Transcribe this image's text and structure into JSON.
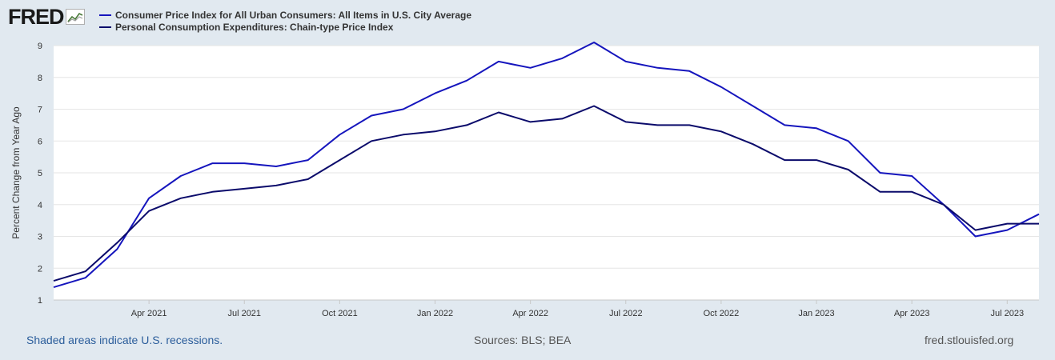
{
  "logo": {
    "text": "FRED"
  },
  "legend": [
    {
      "label": "Consumer Price Index for All Urban Consumers: All Items in U.S. City Average",
      "color": "#1515bd"
    },
    {
      "label": "Personal Consumption Expenditures: Chain-type Price Index",
      "color": "#0b0b6b"
    }
  ],
  "footer": {
    "recession_note": "Shaded areas indicate U.S. recessions.",
    "sources": "Sources: BLS; BEA",
    "site": "fred.stlouisfed.org"
  },
  "chart_data": {
    "type": "line",
    "title": "",
    "xlabel": "",
    "ylabel": "Percent Change from Year Ago",
    "ylim": [
      1,
      9
    ],
    "yticks": [
      1,
      2,
      3,
      4,
      5,
      6,
      7,
      8,
      9
    ],
    "x": [
      "2021-01",
      "2021-02",
      "2021-03",
      "2021-04",
      "2021-05",
      "2021-06",
      "2021-07",
      "2021-08",
      "2021-09",
      "2021-10",
      "2021-11",
      "2021-12",
      "2022-01",
      "2022-02",
      "2022-03",
      "2022-04",
      "2022-05",
      "2022-06",
      "2022-07",
      "2022-08",
      "2022-09",
      "2022-10",
      "2022-11",
      "2022-12",
      "2023-01",
      "2023-02",
      "2023-03",
      "2023-04",
      "2023-05",
      "2023-06",
      "2023-07",
      "2023-08"
    ],
    "xticks": [
      {
        "index": 3,
        "label": "Apr 2021"
      },
      {
        "index": 6,
        "label": "Jul 2021"
      },
      {
        "index": 9,
        "label": "Oct 2021"
      },
      {
        "index": 12,
        "label": "Jan 2022"
      },
      {
        "index": 15,
        "label": "Apr 2022"
      },
      {
        "index": 18,
        "label": "Jul 2022"
      },
      {
        "index": 21,
        "label": "Oct 2022"
      },
      {
        "index": 24,
        "label": "Jan 2023"
      },
      {
        "index": 27,
        "label": "Apr 2023"
      },
      {
        "index": 30,
        "label": "Jul 2023"
      }
    ],
    "series": [
      {
        "name": "Consumer Price Index for All Urban Consumers: All Items in U.S. City Average",
        "values": [
          1.4,
          1.7,
          2.6,
          4.2,
          4.9,
          5.3,
          5.3,
          5.2,
          5.4,
          6.2,
          6.8,
          7.0,
          7.5,
          7.9,
          8.5,
          8.3,
          8.6,
          9.1,
          8.5,
          8.3,
          8.2,
          7.7,
          7.1,
          6.5,
          6.4,
          6.0,
          5.0,
          4.9,
          4.0,
          3.0,
          3.2,
          3.7
        ]
      },
      {
        "name": "Personal Consumption Expenditures: Chain-type Price Index",
        "values": [
          1.6,
          1.9,
          2.8,
          3.8,
          4.2,
          4.4,
          4.5,
          4.6,
          4.8,
          5.4,
          6.0,
          6.2,
          6.3,
          6.5,
          6.9,
          6.6,
          6.7,
          7.1,
          6.6,
          6.5,
          6.5,
          6.3,
          5.9,
          5.4,
          5.4,
          5.1,
          4.4,
          4.4,
          4.0,
          3.2,
          3.4,
          3.4
        ]
      }
    ]
  }
}
